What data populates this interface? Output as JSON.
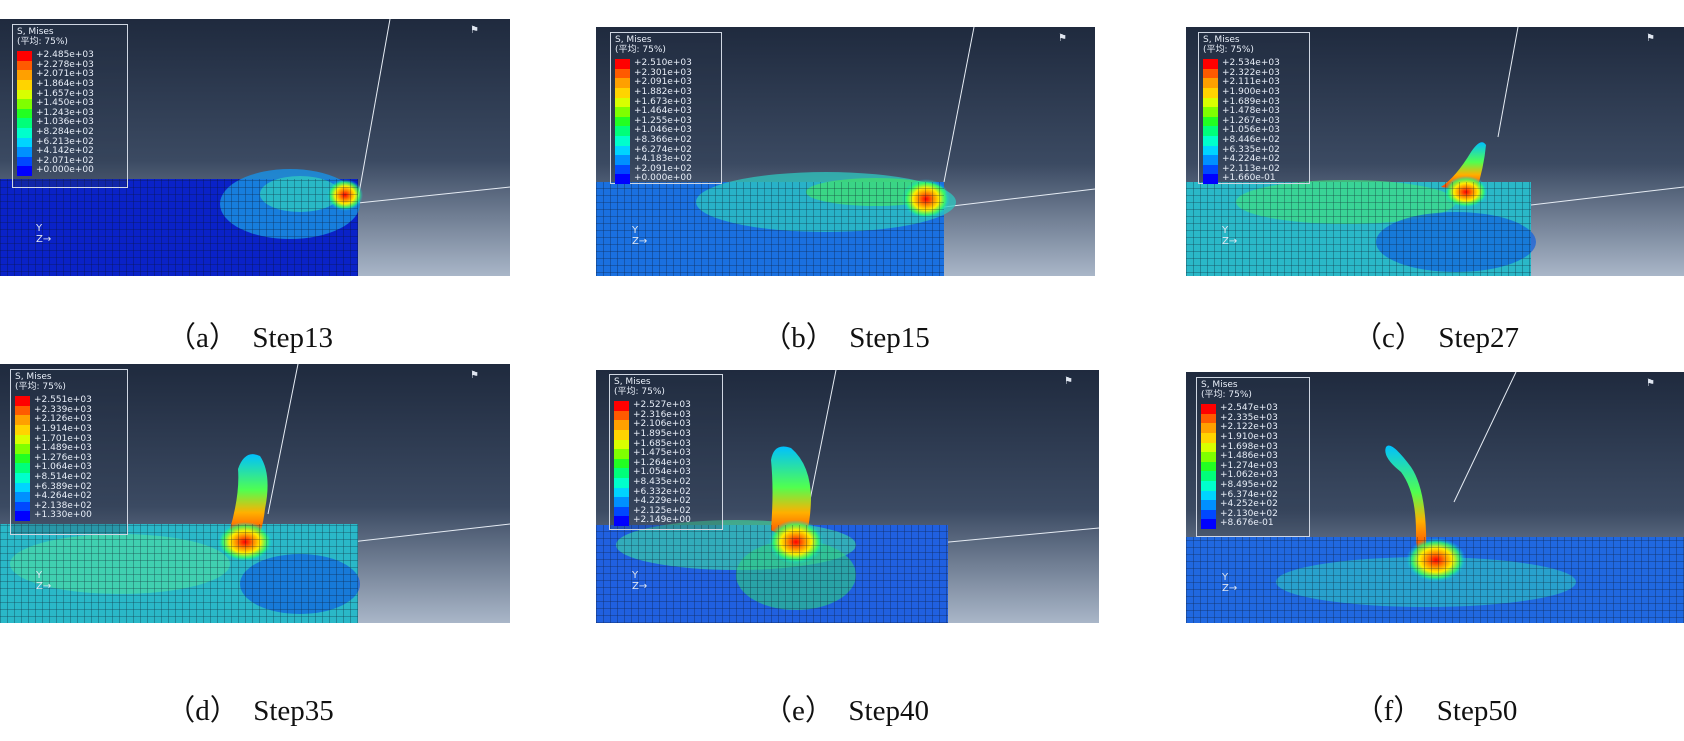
{
  "legend_colors": [
    "#ff0000",
    "#ff5a00",
    "#ffa000",
    "#ffd400",
    "#d8ff00",
    "#7fff00",
    "#22ff22",
    "#00ff7a",
    "#00ffcc",
    "#00d4ff",
    "#0090ff",
    "#0048ff",
    "#0000ff"
  ],
  "panels": [
    {
      "caption": "（a）  Step13",
      "legend_title1": "S, Mises",
      "legend_title2": "(平均: 75%)",
      "values": [
        "+2.485e+03",
        "+2.278e+03",
        "+2.071e+03",
        "+1.864e+03",
        "+1.657e+03",
        "+1.450e+03",
        "+1.243e+03",
        "+1.036e+03",
        "+8.284e+02",
        "+6.213e+02",
        "+4.142e+02",
        "+2.071e+02",
        "+0.000e+00"
      ]
    },
    {
      "caption": "（b）  Step15",
      "legend_title1": "S, Mises",
      "legend_title2": "(平均: 75%)",
      "values": [
        "+2.510e+03",
        "+2.301e+03",
        "+2.091e+03",
        "+1.882e+03",
        "+1.673e+03",
        "+1.464e+03",
        "+1.255e+03",
        "+1.046e+03",
        "+8.366e+02",
        "+6.274e+02",
        "+4.183e+02",
        "+2.091e+02",
        "+0.000e+00"
      ]
    },
    {
      "caption": "（c）  Step27",
      "legend_title1": "S, Mises",
      "legend_title2": "(平均: 75%)",
      "values": [
        "+2.534e+03",
        "+2.322e+03",
        "+2.111e+03",
        "+1.900e+03",
        "+1.689e+03",
        "+1.478e+03",
        "+1.267e+03",
        "+1.056e+03",
        "+8.446e+02",
        "+6.335e+02",
        "+4.224e+02",
        "+2.113e+02",
        "+1.660e-01"
      ]
    },
    {
      "caption": "（d）  Step35",
      "legend_title1": "S, Mises",
      "legend_title2": "(平均: 75%)",
      "values": [
        "+2.551e+03",
        "+2.339e+03",
        "+2.126e+03",
        "+1.914e+03",
        "+1.701e+03",
        "+1.489e+03",
        "+1.276e+03",
        "+1.064e+03",
        "+8.514e+02",
        "+6.389e+02",
        "+4.264e+02",
        "+2.138e+02",
        "+1.330e+00"
      ]
    },
    {
      "caption": "（e）  Step40",
      "legend_title1": "S, Mises",
      "legend_title2": "(平均: 75%)",
      "values": [
        "+2.527e+03",
        "+2.316e+03",
        "+2.106e+03",
        "+1.895e+03",
        "+1.685e+03",
        "+1.475e+03",
        "+1.264e+03",
        "+1.054e+03",
        "+8.435e+02",
        "+6.332e+02",
        "+4.229e+02",
        "+2.125e+02",
        "+2.149e+00"
      ]
    },
    {
      "caption": "（f）  Step50",
      "legend_title1": "S, Mises",
      "legend_title2": "(平均: 75%)",
      "values": [
        "+2.547e+03",
        "+2.335e+03",
        "+2.122e+03",
        "+1.910e+03",
        "+1.698e+03",
        "+1.486e+03",
        "+1.274e+03",
        "+1.062e+03",
        "+8.495e+02",
        "+6.374e+02",
        "+4.252e+02",
        "+2.130e+02",
        "+8.676e-01"
      ]
    }
  ],
  "triad": {
    "y_label": "Y",
    "z_label": "Z"
  }
}
